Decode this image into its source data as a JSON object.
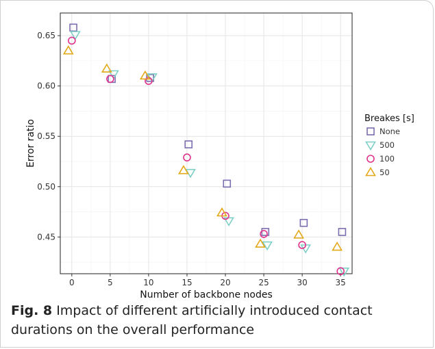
{
  "chart_data": {
    "type": "scatter",
    "title": "",
    "xlabel": "Number of backbone nodes",
    "ylabel": "Error ratio",
    "xlim": [
      -1.5,
      36.5
    ],
    "ylim": [
      0.4135,
      0.6725
    ],
    "x_ticks": [
      0,
      5,
      10,
      15,
      20,
      25,
      30,
      35
    ],
    "y_ticks": [
      0.45,
      0.5,
      0.55,
      0.6,
      0.65
    ],
    "y_tick_labels": [
      "0.45",
      "0.50",
      "0.55",
      "0.60",
      "0.65"
    ],
    "grid": true,
    "legend": {
      "title": "Breakes [s]",
      "placement": "right"
    },
    "series": [
      {
        "name": "None",
        "marker": "square",
        "color": "#7B6BAF",
        "points": [
          [
            0,
            0.658
          ],
          [
            5,
            0.607
          ],
          [
            10,
            0.608
          ],
          [
            15,
            0.542
          ],
          [
            20,
            0.503
          ],
          [
            25,
            0.455
          ],
          [
            30,
            0.464
          ],
          [
            35,
            0.455
          ]
        ]
      },
      {
        "name": "500",
        "marker": "triangle-down",
        "color": "#7ECFC6",
        "points": [
          [
            0,
            0.651
          ],
          [
            5,
            0.612
          ],
          [
            10,
            0.609
          ],
          [
            15,
            0.514
          ],
          [
            20,
            0.466
          ],
          [
            25,
            0.442
          ],
          [
            30,
            0.439
          ],
          [
            35,
            0.416
          ]
        ]
      },
      {
        "name": "100",
        "marker": "circle",
        "color": "#E0338D",
        "points": [
          [
            0,
            0.645
          ],
          [
            5,
            0.607
          ],
          [
            10,
            0.605
          ],
          [
            15,
            0.529
          ],
          [
            20,
            0.471
          ],
          [
            25,
            0.453
          ],
          [
            30,
            0.442
          ],
          [
            35,
            0.416
          ]
        ]
      },
      {
        "name": "50",
        "marker": "triangle-up",
        "color": "#E3A817",
        "points": [
          [
            0,
            0.635
          ],
          [
            5,
            0.617
          ],
          [
            10,
            0.61
          ],
          [
            15,
            0.516
          ],
          [
            20,
            0.474
          ],
          [
            25,
            0.443
          ],
          [
            30,
            0.452
          ],
          [
            35,
            0.44
          ]
        ]
      }
    ]
  },
  "caption": {
    "label": "Fig. 8",
    "text": " Impact of different artificially introduced contact durations on the overall performance"
  }
}
